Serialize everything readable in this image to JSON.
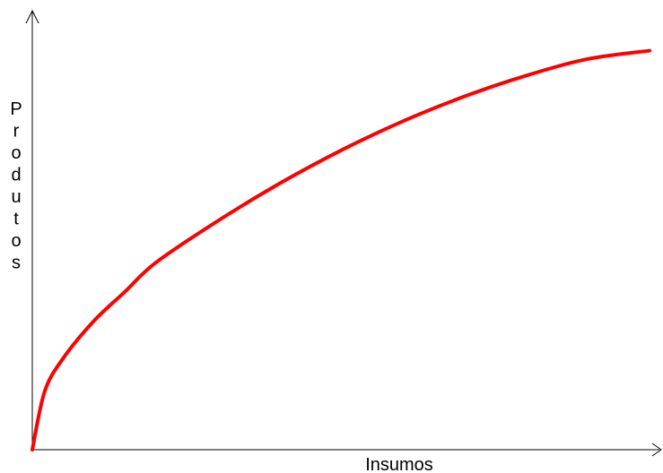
{
  "chart_data": {
    "type": "line",
    "title": "",
    "xlabel": "Insumos",
    "ylabel": "Produtos",
    "xlim": [
      0,
      1
    ],
    "ylim": [
      0,
      1
    ],
    "grid": false,
    "legend": "none",
    "series": [
      {
        "color": "#ff0000",
        "x": [
          0,
          0.02,
          0.05,
          0.1,
          0.15,
          0.2,
          0.3,
          0.4,
          0.5,
          0.6,
          0.7,
          0.8,
          0.9,
          1.0
        ],
        "y": [
          0,
          0.14,
          0.22,
          0.31,
          0.38,
          0.45,
          0.55,
          0.64,
          0.72,
          0.79,
          0.85,
          0.9,
          0.94,
          0.96
        ]
      }
    ]
  }
}
